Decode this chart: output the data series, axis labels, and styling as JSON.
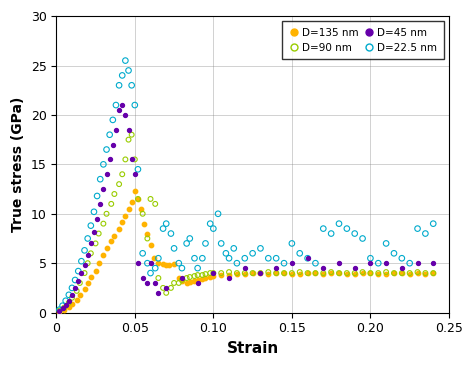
{
  "title": "",
  "xlabel": "Strain",
  "ylabel": "True stress (GPa)",
  "xlim": [
    0,
    0.25
  ],
  "ylim": [
    0,
    30
  ],
  "xticks": [
    0,
    0.05,
    0.1,
    0.15,
    0.2,
    0.25
  ],
  "yticks": [
    0,
    5,
    10,
    15,
    20,
    25,
    30
  ],
  "colors": {
    "D135": "#FFB300",
    "D90": "#99CC00",
    "D45": "#6600AA",
    "D225": "#00AACC"
  },
  "series": {
    "D135": {
      "strain": [
        0.002,
        0.005,
        0.008,
        0.01,
        0.013,
        0.015,
        0.018,
        0.02,
        0.022,
        0.025,
        0.027,
        0.03,
        0.032,
        0.035,
        0.037,
        0.04,
        0.042,
        0.044,
        0.046,
        0.048,
        0.05,
        0.052,
        0.054,
        0.056,
        0.058,
        0.06,
        0.062,
        0.065,
        0.068,
        0.07,
        0.072,
        0.075,
        0.078,
        0.08,
        0.083,
        0.085,
        0.088,
        0.09,
        0.093,
        0.095,
        0.098,
        0.1,
        0.105,
        0.11,
        0.115,
        0.12,
        0.125,
        0.13,
        0.135,
        0.14,
        0.145,
        0.15,
        0.155,
        0.16,
        0.165,
        0.17,
        0.175,
        0.18,
        0.185,
        0.19,
        0.195,
        0.2,
        0.205,
        0.21,
        0.215,
        0.22,
        0.225,
        0.23,
        0.235,
        0.24
      ],
      "stress": [
        0.1,
        0.3,
        0.6,
        0.9,
        1.3,
        1.8,
        2.4,
        3.0,
        3.6,
        4.2,
        5.0,
        5.8,
        6.5,
        7.2,
        7.8,
        8.5,
        9.2,
        9.8,
        10.5,
        11.2,
        12.3,
        11.5,
        10.5,
        9.0,
        8.0,
        6.8,
        5.5,
        5.0,
        4.9,
        4.8,
        4.8,
        4.9,
        3.5,
        3.2,
        3.0,
        3.1,
        3.2,
        3.3,
        3.4,
        3.5,
        3.6,
        3.7,
        3.8,
        3.8,
        3.9,
        3.9,
        4.0,
        4.0,
        3.9,
        4.0,
        4.0,
        3.9,
        3.9,
        4.0,
        4.0,
        3.9,
        4.0,
        4.0,
        3.9,
        3.9,
        4.0,
        4.0,
        3.9,
        3.9,
        4.0,
        4.0,
        3.9,
        4.0,
        3.9,
        4.0
      ]
    },
    "D90": {
      "strain": [
        0.002,
        0.005,
        0.008,
        0.01,
        0.013,
        0.015,
        0.018,
        0.02,
        0.022,
        0.025,
        0.027,
        0.03,
        0.032,
        0.035,
        0.037,
        0.04,
        0.042,
        0.044,
        0.046,
        0.048,
        0.05,
        0.052,
        0.055,
        0.058,
        0.06,
        0.063,
        0.065,
        0.068,
        0.07,
        0.073,
        0.075,
        0.078,
        0.08,
        0.083,
        0.085,
        0.088,
        0.09,
        0.093,
        0.095,
        0.098,
        0.1,
        0.105,
        0.11,
        0.115,
        0.12,
        0.125,
        0.13,
        0.135,
        0.14,
        0.145,
        0.15,
        0.155,
        0.16,
        0.165,
        0.17,
        0.175,
        0.18,
        0.185,
        0.19,
        0.195,
        0.2,
        0.205,
        0.21,
        0.215,
        0.22,
        0.225,
        0.23,
        0.235,
        0.24
      ],
      "stress": [
        0.2,
        0.5,
        1.0,
        1.5,
        2.2,
        3.0,
        4.0,
        5.0,
        6.0,
        7.0,
        8.0,
        9.0,
        10.0,
        11.0,
        12.0,
        13.0,
        14.0,
        15.5,
        17.5,
        18.0,
        15.5,
        11.5,
        10.0,
        7.5,
        11.5,
        11.0,
        3.5,
        2.5,
        2.0,
        2.5,
        3.0,
        3.0,
        3.3,
        3.5,
        3.6,
        3.7,
        3.8,
        3.8,
        3.9,
        4.0,
        4.0,
        4.0,
        4.1,
        4.0,
        4.0,
        4.0,
        4.0,
        4.1,
        4.0,
        4.0,
        4.0,
        4.1,
        4.0,
        4.0,
        4.0,
        4.1,
        4.0,
        4.0,
        4.0,
        4.1,
        4.0,
        4.0,
        4.1,
        4.0,
        4.0,
        4.0,
        4.1,
        4.0,
        4.0
      ]
    },
    "D45": {
      "strain": [
        0.002,
        0.004,
        0.006,
        0.008,
        0.01,
        0.012,
        0.014,
        0.016,
        0.018,
        0.02,
        0.022,
        0.024,
        0.026,
        0.028,
        0.03,
        0.032,
        0.034,
        0.036,
        0.038,
        0.04,
        0.042,
        0.044,
        0.046,
        0.048,
        0.05,
        0.052,
        0.055,
        0.058,
        0.06,
        0.063,
        0.065,
        0.07,
        0.08,
        0.09,
        0.1,
        0.11,
        0.12,
        0.13,
        0.14,
        0.15,
        0.16,
        0.17,
        0.18,
        0.19,
        0.2,
        0.21,
        0.22,
        0.23,
        0.24
      ],
      "stress": [
        0.2,
        0.5,
        0.8,
        1.2,
        1.8,
        2.5,
        3.2,
        4.0,
        4.8,
        5.8,
        7.0,
        8.2,
        9.5,
        11.0,
        12.5,
        14.0,
        15.5,
        17.0,
        18.5,
        20.5,
        21.0,
        20.0,
        18.5,
        15.5,
        14.0,
        5.0,
        3.5,
        3.0,
        5.0,
        3.0,
        2.0,
        2.5,
        3.5,
        3.0,
        4.0,
        3.5,
        4.5,
        4.0,
        4.5,
        5.0,
        5.5,
        4.5,
        5.0,
        4.5,
        5.0,
        5.0,
        4.5,
        5.0,
        5.0
      ]
    },
    "D225": {
      "strain": [
        0.002,
        0.004,
        0.006,
        0.008,
        0.01,
        0.012,
        0.014,
        0.016,
        0.018,
        0.02,
        0.022,
        0.024,
        0.026,
        0.028,
        0.03,
        0.032,
        0.034,
        0.036,
        0.038,
        0.04,
        0.042,
        0.044,
        0.046,
        0.048,
        0.05,
        0.052,
        0.055,
        0.058,
        0.06,
        0.063,
        0.065,
        0.068,
        0.07,
        0.073,
        0.075,
        0.078,
        0.08,
        0.083,
        0.085,
        0.088,
        0.09,
        0.093,
        0.095,
        0.098,
        0.1,
        0.103,
        0.105,
        0.108,
        0.11,
        0.113,
        0.115,
        0.12,
        0.125,
        0.13,
        0.135,
        0.14,
        0.145,
        0.15,
        0.155,
        0.16,
        0.165,
        0.17,
        0.175,
        0.18,
        0.185,
        0.19,
        0.195,
        0.2,
        0.205,
        0.21,
        0.215,
        0.22,
        0.225,
        0.23,
        0.235,
        0.24
      ],
      "stress": [
        0.3,
        0.7,
        1.2,
        1.8,
        2.5,
        3.3,
        4.2,
        5.2,
        6.3,
        7.5,
        8.8,
        10.2,
        11.8,
        13.5,
        15.0,
        16.5,
        18.0,
        19.5,
        21.0,
        23.0,
        24.0,
        25.5,
        24.5,
        23.0,
        21.0,
        14.5,
        6.0,
        5.0,
        4.0,
        4.5,
        5.5,
        8.5,
        9.0,
        8.0,
        6.5,
        5.0,
        4.5,
        7.0,
        7.5,
        5.5,
        4.5,
        5.5,
        7.0,
        9.0,
        8.5,
        10.0,
        7.0,
        6.0,
        5.5,
        6.5,
        5.0,
        5.5,
        6.0,
        6.5,
        5.5,
        5.5,
        5.0,
        7.0,
        6.0,
        5.5,
        5.0,
        8.5,
        8.0,
        9.0,
        8.5,
        8.0,
        7.5,
        5.5,
        5.0,
        7.0,
        6.0,
        5.5,
        5.0,
        8.5,
        8.0,
        9.0
      ]
    }
  }
}
